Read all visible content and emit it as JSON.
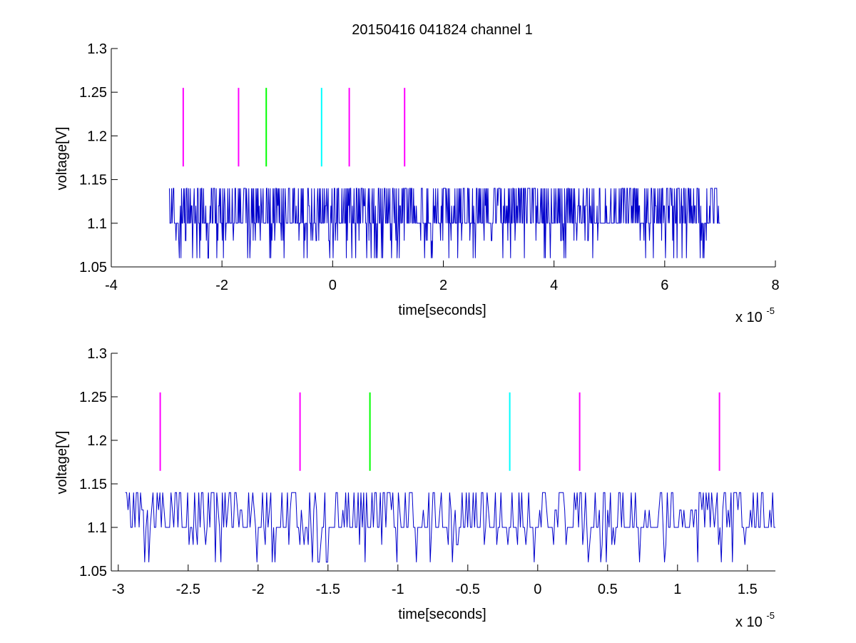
{
  "chart_data": [
    {
      "type": "line",
      "title": "20150416 041824 channel 1",
      "xlabel": "time[seconds]",
      "ylabel": "voltage[V]",
      "x_multiplier_label": "x 10",
      "x_multiplier_exponent": "-5",
      "xlim": [
        -4,
        8
      ],
      "ylim": [
        1.05,
        1.3
      ],
      "xticks": [
        -4,
        -2,
        0,
        2,
        4,
        6,
        8
      ],
      "xtick_labels": [
        "-4",
        "-2",
        "0",
        "2",
        "4",
        "6",
        "8"
      ],
      "yticks": [
        1.05,
        1.1,
        1.15,
        1.2,
        1.25,
        1.3
      ],
      "ytick_labels": [
        "1.05",
        "1.1",
        "1.15",
        "1.2",
        "1.25",
        "1.3"
      ],
      "grid": false,
      "markers": [
        {
          "x": -2.7,
          "color": "#ff00ff"
        },
        {
          "x": -1.7,
          "color": "#ff00ff"
        },
        {
          "x": -1.2,
          "color": "#00ff00"
        },
        {
          "x": -0.2,
          "color": "#00ffff"
        },
        {
          "x": 0.3,
          "color": "#ff00ff"
        },
        {
          "x": 1.3,
          "color": "#ff00ff"
        }
      ],
      "marker_y_range": [
        1.165,
        1.255
      ],
      "series": [
        {
          "color": "#0000cc",
          "x_range": [
            -2.95,
            7.0
          ],
          "baseline": 1.1,
          "levels": [
            1.06,
            1.08,
            1.1,
            1.12,
            1.14
          ],
          "seed": 7,
          "n_points": 1000
        }
      ]
    },
    {
      "type": "line",
      "title": "",
      "xlabel": "time[seconds]",
      "ylabel": "voltage[V]",
      "x_multiplier_label": "x 10",
      "x_multiplier_exponent": "-5",
      "xlim": [
        -3.05,
        1.7
      ],
      "ylim": [
        1.05,
        1.3
      ],
      "xticks": [
        -3,
        -2.5,
        -2,
        -1.5,
        -1,
        -0.5,
        0,
        0.5,
        1,
        1.5
      ],
      "xtick_labels": [
        "-3",
        "-2.5",
        "-2",
        "-1.5",
        "-1",
        "-0.5",
        "0",
        "0.5",
        "1",
        "1.5"
      ],
      "yticks": [
        1.05,
        1.1,
        1.15,
        1.2,
        1.25,
        1.3
      ],
      "ytick_labels": [
        "1.05",
        "1.1",
        "1.15",
        "1.2",
        "1.25",
        "1.3"
      ],
      "grid": false,
      "markers": [
        {
          "x": -2.7,
          "color": "#ff00ff"
        },
        {
          "x": -1.7,
          "color": "#ff00ff"
        },
        {
          "x": -1.2,
          "color": "#00ff00"
        },
        {
          "x": -0.2,
          "color": "#00ffff"
        },
        {
          "x": 0.3,
          "color": "#ff00ff"
        },
        {
          "x": 1.3,
          "color": "#ff00ff"
        }
      ],
      "marker_y_range": [
        1.165,
        1.255
      ],
      "series": [
        {
          "color": "#0000cc",
          "x_range": [
            -2.95,
            1.7
          ],
          "baseline": 1.1,
          "levels": [
            1.06,
            1.08,
            1.1,
            1.12,
            1.14
          ],
          "seed": 11,
          "n_points": 470
        }
      ]
    }
  ]
}
